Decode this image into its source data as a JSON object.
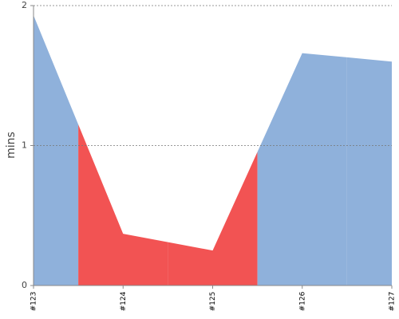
{
  "chart_data": {
    "type": "area",
    "y_label": "mins",
    "categories": [
      "#123",
      "#124",
      "#125",
      "#126",
      "#127"
    ],
    "values": [
      1.93,
      0.37,
      0.25,
      1.66,
      1.6
    ],
    "colors": [
      "#8fb1db",
      "#f25353",
      "#f25353",
      "#8fb1db",
      "#8fb1db"
    ],
    "ylim": [
      0,
      2
    ],
    "yticks": [
      0,
      1,
      2
    ],
    "grid": true
  }
}
